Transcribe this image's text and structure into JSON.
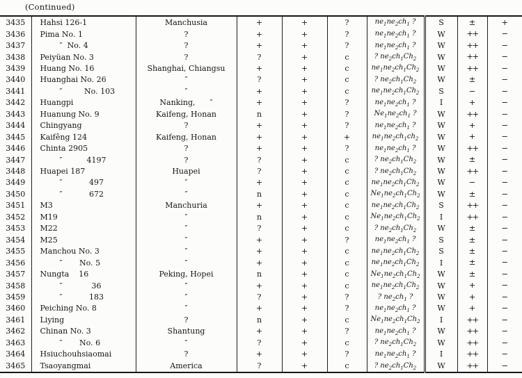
{
  "page": {
    "continued_label": "(Continued)"
  },
  "table": {
    "rows": [
      {
        "id": "3435",
        "name": "Hahsi 126-1",
        "origin": "Manchusia",
        "r1": "+",
        "r2": "+",
        "r3": "?",
        "genotype": "ne₁ne₂ch₁ ?",
        "letter": "S",
        "grade": "±",
        "mark": "+"
      },
      {
        "id": "3436",
        "name": "Pima No. 1",
        "origin": "?",
        "r1": "+",
        "r2": "+",
        "r3": "?",
        "genotype": "ne₁ne₂ch₁ ?",
        "letter": "W",
        "grade": "++",
        "mark": "−"
      },
      {
        "id": "3437",
        "name": "        ″  No. 4",
        "origin": "?",
        "r1": "+",
        "r2": "+",
        "r3": "?",
        "genotype": "ne₁ne₂ch₁ ?",
        "letter": "W",
        "grade": "++",
        "mark": "−"
      },
      {
        "id": "3438",
        "name": "Peiyüan No. 3",
        "origin": "?",
        "r1": "?",
        "r2": "+",
        "r3": "c",
        "genotype": "? ne₂ch₁Ch₂",
        "letter": "W",
        "grade": "++",
        "mark": "−"
      },
      {
        "id": "3439",
        "name": "Huang No. 16",
        "origin": "Shanghai, Chiangsu",
        "r1": "+",
        "r2": "+",
        "r3": "c",
        "genotype": "ne₁ne₂ch₁Ch₂",
        "letter": "W",
        "grade": "++",
        "mark": "−"
      },
      {
        "id": "3440",
        "name": "Huanghai No. 26",
        "origin": "″",
        "r1": "?",
        "r2": "+",
        "r3": "c",
        "genotype": "? ne₂ch₁Ch₂",
        "letter": "W",
        "grade": "±",
        "mark": "−"
      },
      {
        "id": "3441",
        "name": "        ″         No. 103",
        "origin": "″",
        "r1": "+",
        "r2": "+",
        "r3": "c",
        "genotype": "ne₁ne₂ch₁Ch₂",
        "letter": "S",
        "grade": "−",
        "mark": "−"
      },
      {
        "id": "3442",
        "name": "Huangpi",
        "origin": "Nanking,      ″",
        "r1": "+",
        "r2": "+",
        "r3": "?",
        "genotype": "ne₁ne₂ch₁ ?",
        "letter": "I",
        "grade": "+",
        "mark": "−"
      },
      {
        "id": "3443",
        "name": "Huanung No. 9",
        "origin": "Kaifeng, Honan",
        "r1": "n",
        "r2": "+",
        "r3": "?",
        "genotype": "Ne₁ne₂ch₁ ?",
        "letter": "W",
        "grade": "++",
        "mark": "−"
      },
      {
        "id": "3444",
        "name": "Chingyang",
        "origin": "?",
        "r1": "+",
        "r2": "+",
        "r3": "?",
        "genotype": "ne₁ne₂ch₁ ?",
        "letter": "W",
        "grade": "+",
        "mark": "−"
      },
      {
        "id": "3445",
        "name": "Kaifêng 124",
        "origin": "Kaifeng, Honan",
        "r1": "+",
        "r2": "+",
        "r3": "+",
        "genotype": "ne₁ne₂ch₁ch₂",
        "letter": "W",
        "grade": "+",
        "mark": "−"
      },
      {
        "id": "3446",
        "name": "Chinta 2905",
        "origin": "?",
        "r1": "+",
        "r2": "+",
        "r3": "?",
        "genotype": "ne₁ne₂ch₁ ?",
        "letter": "W",
        "grade": "++",
        "mark": "−"
      },
      {
        "id": "3447",
        "name": "        ″          4197",
        "origin": "?",
        "r1": "?",
        "r2": "+",
        "r3": "c",
        "genotype": "? ne₂ch₁Ch₂",
        "letter": "W",
        "grade": "±",
        "mark": "−"
      },
      {
        "id": "3448",
        "name": "Huapei 187",
        "origin": "Huapei",
        "r1": "?",
        "r2": "+",
        "r3": "c",
        "genotype": "? ne₂ch₁Ch₂",
        "letter": "W",
        "grade": "++",
        "mark": "−"
      },
      {
        "id": "3449",
        "name": "        ″           497",
        "origin": "″",
        "r1": "+",
        "r2": "+",
        "r3": "c",
        "genotype": "ne₁ne₂ch₁Ch₂",
        "letter": "W",
        "grade": "−",
        "mark": "−"
      },
      {
        "id": "3450",
        "name": "        ″           672",
        "origin": "″",
        "r1": "n",
        "r2": "+",
        "r3": "c",
        "genotype": "Ne₁ne₂ch₁Ch₂",
        "letter": "W",
        "grade": "±",
        "mark": "−"
      },
      {
        "id": "3451",
        "name": "M3",
        "origin": "Manchuria",
        "r1": "+",
        "r2": "+",
        "r3": "c",
        "genotype": "ne₁ne₂ch₁Ch₂",
        "letter": "S",
        "grade": "++",
        "mark": "−"
      },
      {
        "id": "3452",
        "name": "M19",
        "origin": "″",
        "r1": "n",
        "r2": "+",
        "r3": "c",
        "genotype": "Ne₁ne₂ch₁Ch₂",
        "letter": "I",
        "grade": "++",
        "mark": "−"
      },
      {
        "id": "3453",
        "name": "M22",
        "origin": "″",
        "r1": "?",
        "r2": "+",
        "r3": "c",
        "genotype": "? ne₂ch₁Ch₂",
        "letter": "W",
        "grade": "±",
        "mark": "−"
      },
      {
        "id": "3454",
        "name": "M25",
        "origin": "″",
        "r1": "+",
        "r2": "+",
        "r3": "?",
        "genotype": "ne₁ne₂ch₁ ?",
        "letter": "S",
        "grade": "±",
        "mark": "−"
      },
      {
        "id": "3455",
        "name": "Manchou No. 3",
        "origin": "″",
        "r1": "+",
        "r2": "+",
        "r3": "c",
        "genotype": "ne₁ne₂ch₁Ch₂",
        "letter": "S",
        "grade": "±",
        "mark": "−"
      },
      {
        "id": "3456",
        "name": "        ″       No. 5",
        "origin": "″",
        "r1": "+",
        "r2": "+",
        "r3": "c",
        "genotype": "ne₁ne₂ch₁Ch₂",
        "letter": "I",
        "grade": "±",
        "mark": "−"
      },
      {
        "id": "3457",
        "name": "Nungta    16",
        "origin": "Peking, Hopei",
        "r1": "n",
        "r2": "+",
        "r3": "c",
        "genotype": "Ne₁ne₂ch₁Ch₂",
        "letter": "W",
        "grade": "±",
        "mark": "−"
      },
      {
        "id": "3458",
        "name": "        ″            36",
        "origin": "″",
        "r1": "+",
        "r2": "+",
        "r3": "c",
        "genotype": "ne₁ne₂ch₁Ch₂",
        "letter": "W",
        "grade": "+",
        "mark": "−"
      },
      {
        "id": "3459",
        "name": "        ″           183",
        "origin": "″",
        "r1": "?",
        "r2": "+",
        "r3": "?",
        "genotype": "? ne₂ch₁ ?",
        "letter": "W",
        "grade": "+",
        "mark": "−"
      },
      {
        "id": "3460",
        "name": "Peiching No. 8",
        "origin": "″",
        "r1": "+",
        "r2": "+",
        "r3": "?",
        "genotype": "ne₁ne₂ch₁ ?",
        "letter": "W",
        "grade": "+",
        "mark": "−"
      },
      {
        "id": "3461",
        "name": "Liying",
        "origin": "?",
        "r1": "n",
        "r2": "+",
        "r3": "c",
        "genotype": "Ne₁ne₂ch₁Ch₂",
        "letter": "I",
        "grade": "++",
        "mark": "−"
      },
      {
        "id": "3462",
        "name": "Chinan No. 3",
        "origin": "Shantung",
        "r1": "+",
        "r2": "+",
        "r3": "?",
        "genotype": "ne₁ne₂ch₁ ?",
        "letter": "W",
        "grade": "++",
        "mark": "−"
      },
      {
        "id": "3463",
        "name": "        ″       No. 6",
        "origin": "″",
        "r1": "?",
        "r2": "+",
        "r3": "c",
        "genotype": "? ne₂ch₁Ch₂",
        "letter": "W",
        "grade": "++",
        "mark": "−"
      },
      {
        "id": "3464",
        "name": "Hsiuchouhsiaomai",
        "origin": "?",
        "r1": "+",
        "r2": "+",
        "r3": "?",
        "genotype": "ne₁ne₂ch₁ ?",
        "letter": "I",
        "grade": "++",
        "mark": "−"
      },
      {
        "id": "3465",
        "name": "Tsaoyangmai",
        "origin": "America",
        "r1": "?",
        "r2": "+",
        "r3": "c",
        "genotype": "? ne₂ch₁Ch₂",
        "letter": "W",
        "grade": "++",
        "mark": "−"
      }
    ]
  }
}
